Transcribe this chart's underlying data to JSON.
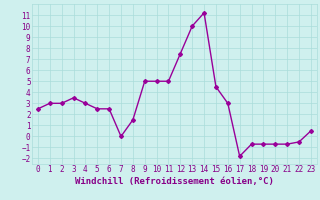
{
  "x": [
    0,
    1,
    2,
    3,
    4,
    5,
    6,
    7,
    8,
    9,
    10,
    11,
    12,
    13,
    14,
    15,
    16,
    17,
    18,
    19,
    20,
    21,
    22,
    23
  ],
  "y": [
    2.5,
    3.0,
    3.0,
    3.5,
    3.0,
    2.5,
    2.5,
    0.0,
    1.5,
    5.0,
    5.0,
    5.0,
    7.5,
    10.0,
    11.2,
    4.5,
    3.0,
    -1.8,
    -0.7,
    -0.7,
    -0.7,
    -0.7,
    -0.5,
    0.5
  ],
  "line_color": "#990099",
  "bg_color": "#cff0ee",
  "grid_color": "#aaddda",
  "axis_label_color": "#880088",
  "tick_color": "#880088",
  "xlabel": "Windchill (Refroidissement éolien,°C)",
  "ylim": [
    -2.5,
    12
  ],
  "xlim": [
    -0.5,
    23.5
  ],
  "yticks": [
    -2,
    -1,
    0,
    1,
    2,
    3,
    4,
    5,
    6,
    7,
    8,
    9,
    10,
    11
  ],
  "xticks": [
    0,
    1,
    2,
    3,
    4,
    5,
    6,
    7,
    8,
    9,
    10,
    11,
    12,
    13,
    14,
    15,
    16,
    17,
    18,
    19,
    20,
    21,
    22,
    23
  ],
  "marker": "D",
  "marker_size": 2.0,
  "line_width": 1.0,
  "tick_fontsize": 5.5,
  "label_fontsize": 6.5
}
